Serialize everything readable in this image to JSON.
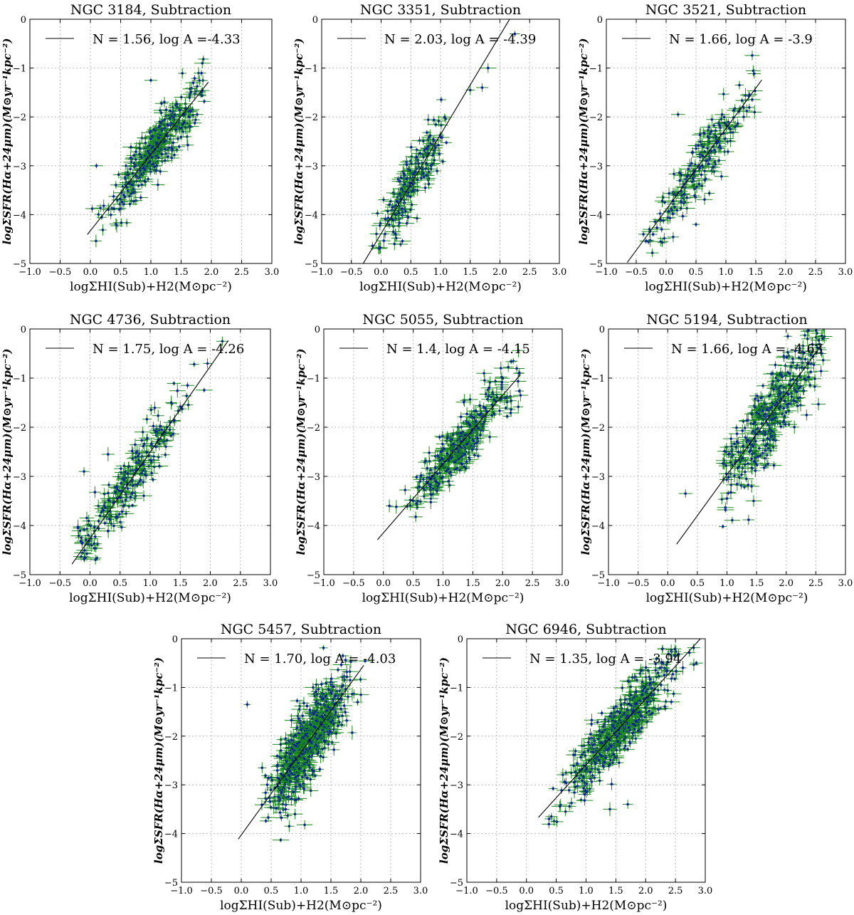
{
  "chart_data": [
    {
      "type": "scatter",
      "title": "NGC 3184, Subtraction",
      "legend": "N = 1.56, log A =-4.33",
      "slope": 1.56,
      "intercept": -4.33,
      "fit_x": [
        -0.05,
        1.95
      ],
      "xlabel": "logΣHI(Sub)+H2(M⊙pc⁻²)",
      "ylabel": "logΣSFR(Hα+24μm)(M⊙yr⁻¹kpc⁻²)",
      "xlim": [
        -1.0,
        3.0
      ],
      "ylim": [
        -5,
        0
      ],
      "xticks": [
        "−1.0",
        "−0.5",
        "0.0",
        "0.5",
        "1.0",
        "1.5",
        "2.0",
        "2.5",
        "3.0"
      ],
      "yticks": [
        "0",
        "−1",
        "−2",
        "−3",
        "−4",
        "−5"
      ],
      "cloud": {
        "n": 380,
        "xmin": 0.0,
        "xmax": 1.9,
        "scatter": 0.28,
        "xc": 1.1,
        "xs": 0.35
      },
      "outliers": [
        [
          1.85,
          -0.9
        ],
        [
          1.0,
          -1.25
        ],
        [
          0.55,
          -3.6
        ],
        [
          0.1,
          -3.0
        ]
      ]
    },
    {
      "type": "scatter",
      "title": "NGC 3351, Subtraction",
      "legend": "N = 2.03, log A = -4.39",
      "slope": 2.03,
      "intercept": -4.39,
      "fit_x": [
        -0.3,
        2.25
      ],
      "xlabel": "logΣHI(Sub)+H2(M⊙pc⁻²)",
      "ylabel": "logΣSFR(Hα+24μm)(M⊙yr⁻¹kpc⁻²)",
      "xlim": [
        -1.0,
        3.0
      ],
      "ylim": [
        -5,
        0
      ],
      "xticks": [
        "−1.0",
        "−0.5",
        "0.0",
        "0.5",
        "1.0",
        "1.5",
        "2.0",
        "2.5",
        "3.0"
      ],
      "yticks": [
        "0",
        "−1",
        "−2",
        "−3",
        "−4",
        "−5"
      ],
      "cloud": {
        "n": 220,
        "xmin": -0.3,
        "xmax": 1.1,
        "scatter": 0.35,
        "xc": 0.5,
        "xs": 0.3
      },
      "outliers": [
        [
          2.25,
          -0.3
        ],
        [
          1.5,
          -1.45
        ],
        [
          1.8,
          -1.0
        ],
        [
          1.7,
          -1.4
        ]
      ]
    },
    {
      "type": "scatter",
      "title": "NGC 3521, Subtraction",
      "legend": "N = 1.66, log A = -3.9",
      "slope": 1.66,
      "intercept": -3.9,
      "fit_x": [
        -0.65,
        1.6
      ],
      "xlabel": "logΣHI(Sub)+H2(M⊙pc⁻²)",
      "ylabel": "logΣSFR(Hα+24μm)(M⊙yr⁻¹kpc⁻²)",
      "xlim": [
        -1.0,
        3.0
      ],
      "ylim": [
        -5,
        0
      ],
      "xticks": [
        "−1.0",
        "−0.5",
        "0.0",
        "0.5",
        "1.0",
        "1.5",
        "2.0",
        "2.5",
        "3.0"
      ],
      "yticks": [
        "0",
        "−1",
        "−2",
        "−3",
        "−4",
        "−5"
      ],
      "cloud": {
        "n": 220,
        "xmin": -0.5,
        "xmax": 1.55,
        "scatter": 0.3,
        "xc": 0.6,
        "xs": 0.45
      },
      "outliers": [
        [
          0.2,
          -1.95
        ],
        [
          -0.1,
          -4.1
        ],
        [
          0.5,
          -4.2
        ]
      ]
    },
    {
      "type": "scatter",
      "title": "NGC 4736, Subtraction",
      "legend": "N = 1.75, log A = -4.26",
      "slope": 1.75,
      "intercept": -4.26,
      "fit_x": [
        -0.3,
        2.3
      ],
      "xlabel": "logΣHI(Sub)+H2(M⊙pc⁻²)",
      "ylabel": "logΣSFR(Hα+24μm)(M⊙yr⁻¹kpc⁻²)",
      "xlim": [
        -1.0,
        3.0
      ],
      "ylim": [
        -5,
        0
      ],
      "xticks": [
        "−1.0",
        "−0.5",
        "0.0",
        "0.5",
        "1.0",
        "1.5",
        "2.0",
        "2.5",
        "3.0"
      ],
      "yticks": [
        "0",
        "−1",
        "−2",
        "−3",
        "−4",
        "−5"
      ],
      "cloud": {
        "n": 260,
        "xmin": -0.2,
        "xmax": 2.0,
        "scatter": 0.3,
        "xc": 0.6,
        "xs": 0.5
      },
      "outliers": [
        [
          2.2,
          -0.25
        ],
        [
          -0.1,
          -2.9
        ],
        [
          0.3,
          -2.55
        ],
        [
          -0.2,
          -4.05
        ]
      ]
    },
    {
      "type": "scatter",
      "title": "NGC 5055, Subtraction",
      "legend": "N = 1.4, log A = -4.15",
      "slope": 1.4,
      "intercept": -4.15,
      "fit_x": [
        -0.1,
        2.3
      ],
      "xlabel": "logΣHI(Sub)+H2(M⊙pc⁻²)",
      "ylabel": "logΣSFR(Hα+24μm)(M⊙yr⁻¹kpc⁻²)",
      "xlim": [
        -1.0,
        3.0
      ],
      "ylim": [
        -5,
        0
      ],
      "xticks": [
        "−1.0",
        "−0.5",
        "0.0",
        "0.5",
        "1.0",
        "1.5",
        "2.0",
        "2.5",
        "3.0"
      ],
      "yticks": [
        "0",
        "−1",
        "−2",
        "−3",
        "−4",
        "−5"
      ],
      "cloud": {
        "n": 380,
        "xmin": 0.0,
        "xmax": 2.3,
        "scatter": 0.28,
        "xc": 1.3,
        "xs": 0.4
      },
      "outliers": [
        [
          2.3,
          -1.35
        ],
        [
          0.1,
          -3.6
        ],
        [
          0.5,
          -3.5
        ]
      ]
    },
    {
      "type": "scatter",
      "title": "NGC 5194, Subtraction",
      "legend": "N = 1.66, log A = -4.63",
      "slope": 1.66,
      "intercept": -4.63,
      "fit_x": [
        0.15,
        2.6
      ],
      "xlabel": "logΣHI(Sub)+H2(M⊙pc⁻²)",
      "ylabel": "logΣSFR(Hα+24μm)(M⊙yr⁻¹kpc⁻²)",
      "xlim": [
        -1.0,
        3.0
      ],
      "ylim": [
        -5,
        0
      ],
      "xticks": [
        "−1.0",
        "−0.5",
        "0.0",
        "0.5",
        "1.0",
        "1.5",
        "2.0",
        "2.5",
        "3.0"
      ],
      "yticks": [
        "0",
        "−1",
        "−2",
        "−3",
        "−4",
        "−5"
      ],
      "cloud": {
        "n": 420,
        "xmin": 0.9,
        "xmax": 2.65,
        "scatter": 0.42,
        "xc": 1.8,
        "xs": 0.45
      },
      "outliers": [
        [
          0.3,
          -3.35
        ],
        [
          1.45,
          -3.5
        ],
        [
          1.0,
          -3.45
        ],
        [
          2.6,
          -0.5
        ]
      ]
    },
    {
      "type": "scatter",
      "title": "NGC 5457, Subtraction",
      "legend": "N = 1.70, log A = -4.03",
      "slope": 1.7,
      "intercept": -4.03,
      "fit_x": [
        -0.05,
        2.05
      ],
      "xlabel": "logΣHI(Sub)+H2(M⊙pc⁻²)",
      "ylabel": "logΣSFR(Hα+24μm)(M⊙yr⁻¹kpc⁻²)",
      "xlim": [
        -1.0,
        3.0
      ],
      "ylim": [
        -5,
        0
      ],
      "xticks": [
        "−1.0",
        "−0.5",
        "0.0",
        "0.5",
        "1.0",
        "1.5",
        "2.0",
        "2.5",
        "3.0"
      ],
      "yticks": [
        "0",
        "−1",
        "−2",
        "−3",
        "−4",
        "−5"
      ],
      "cloud": {
        "n": 650,
        "xmin": 0.0,
        "xmax": 2.1,
        "scatter": 0.38,
        "xc": 1.1,
        "xs": 0.3
      },
      "outliers": [
        [
          1.7,
          -0.35
        ],
        [
          0.1,
          -1.35
        ],
        [
          0.9,
          -3.6
        ],
        [
          2.0,
          -1.15
        ]
      ]
    },
    {
      "type": "scatter",
      "title": "NGC 6946, Subtraction",
      "legend": "N = 1.35, log A = -3.94",
      "slope": 1.35,
      "intercept": -3.94,
      "fit_x": [
        0.2,
        2.95
      ],
      "xlabel": "logΣHI(Sub)+H2(M⊙pc⁻²)",
      "ylabel": "logΣSFR(Hα+24μm)(M⊙yr⁻¹kpc⁻²)",
      "xlim": [
        -1.0,
        3.0
      ],
      "ylim": [
        -5,
        0
      ],
      "xticks": [
        "−1.0",
        "−0.5",
        "0.0",
        "0.5",
        "1.0",
        "1.5",
        "2.0",
        "2.5",
        "3.0"
      ],
      "yticks": [
        "0",
        "−1",
        "−2",
        "−3",
        "−4",
        "−5"
      ],
      "cloud": {
        "n": 560,
        "xmin": 0.3,
        "xmax": 2.95,
        "scatter": 0.32,
        "xc": 1.6,
        "xs": 0.45
      },
      "outliers": [
        [
          0.8,
          -2.95
        ],
        [
          1.4,
          -3.5
        ],
        [
          1.7,
          -3.4
        ],
        [
          2.85,
          -0.5
        ]
      ]
    }
  ]
}
